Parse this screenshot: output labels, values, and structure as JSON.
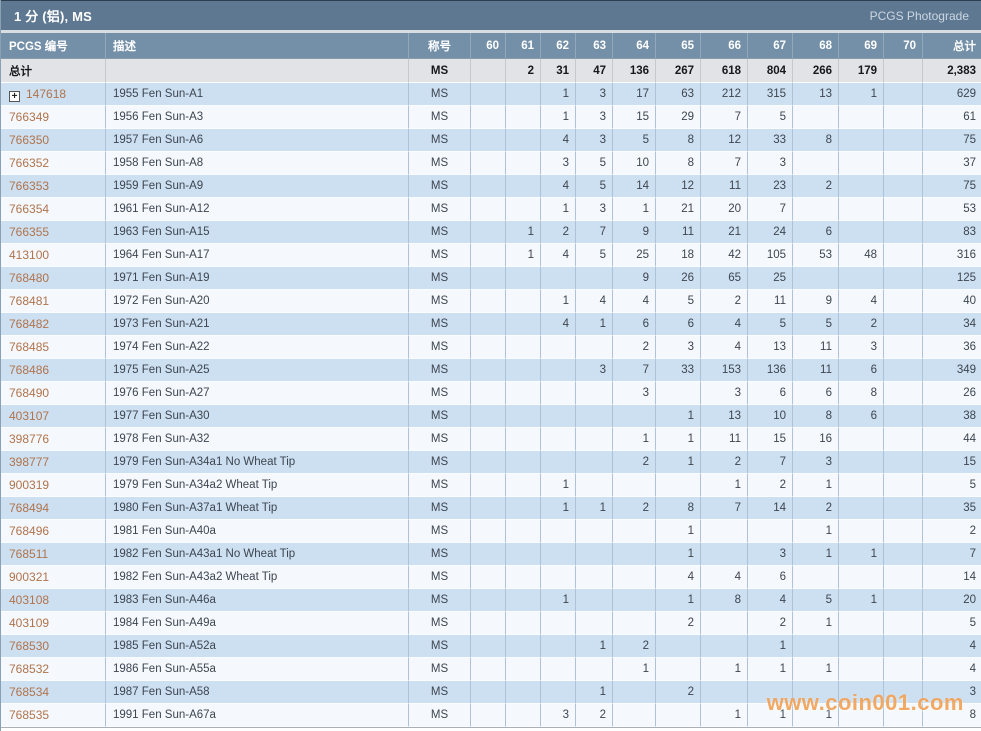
{
  "title_bar": {
    "title": "1 分 (铝), MS",
    "photograde_link": "PCGS Photograde"
  },
  "colors": {
    "title_bar_bg": "#5e7892",
    "header_bg": "#7490a8",
    "totals_row_bg": "#e1e3e6",
    "row_blue": "#cde0f2",
    "row_white": "#f5f9fd",
    "pcgs_link": "#b0734c",
    "watermark": "#f09d4e"
  },
  "table": {
    "columns": [
      "PCGS 编号",
      "描述",
      "称号",
      "60",
      "61",
      "62",
      "63",
      "64",
      "65",
      "66",
      "67",
      "68",
      "69",
      "70",
      "总计"
    ],
    "totals_row": {
      "label": "总计",
      "designation": "MS",
      "grades": [
        "",
        "2",
        "31",
        "47",
        "136",
        "267",
        "618",
        "804",
        "266",
        "179",
        ""
      ],
      "total": "2,383"
    },
    "rows": [
      {
        "pcgs": "147618",
        "expandable": true,
        "desc": "1955 Fen Sun-A1",
        "desig": "MS",
        "grades": [
          "",
          "",
          "1",
          "3",
          "17",
          "63",
          "212",
          "315",
          "13",
          "1",
          ""
        ],
        "total": "629"
      },
      {
        "pcgs": "766349",
        "expandable": false,
        "desc": "1956 Fen Sun-A3",
        "desig": "MS",
        "grades": [
          "",
          "",
          "1",
          "3",
          "15",
          "29",
          "7",
          "5",
          "",
          "",
          ""
        ],
        "total": "61"
      },
      {
        "pcgs": "766350",
        "expandable": false,
        "desc": "1957 Fen Sun-A6",
        "desig": "MS",
        "grades": [
          "",
          "",
          "4",
          "3",
          "5",
          "8",
          "12",
          "33",
          "8",
          "",
          ""
        ],
        "total": "75"
      },
      {
        "pcgs": "766352",
        "expandable": false,
        "desc": "1958 Fen Sun-A8",
        "desig": "MS",
        "grades": [
          "",
          "",
          "3",
          "5",
          "10",
          "8",
          "7",
          "3",
          "",
          "",
          ""
        ],
        "total": "37"
      },
      {
        "pcgs": "766353",
        "expandable": false,
        "desc": "1959 Fen Sun-A9",
        "desig": "MS",
        "grades": [
          "",
          "",
          "4",
          "5",
          "14",
          "12",
          "11",
          "23",
          "2",
          "",
          ""
        ],
        "total": "75"
      },
      {
        "pcgs": "766354",
        "expandable": false,
        "desc": "1961 Fen Sun-A12",
        "desig": "MS",
        "grades": [
          "",
          "",
          "1",
          "3",
          "1",
          "21",
          "20",
          "7",
          "",
          "",
          ""
        ],
        "total": "53"
      },
      {
        "pcgs": "766355",
        "expandable": false,
        "desc": "1963 Fen Sun-A15",
        "desig": "MS",
        "grades": [
          "",
          "1",
          "2",
          "7",
          "9",
          "11",
          "21",
          "24",
          "6",
          "",
          ""
        ],
        "total": "83"
      },
      {
        "pcgs": "413100",
        "expandable": false,
        "desc": "1964 Fen Sun-A17",
        "desig": "MS",
        "grades": [
          "",
          "1",
          "4",
          "5",
          "25",
          "18",
          "42",
          "105",
          "53",
          "48",
          ""
        ],
        "total": "316"
      },
      {
        "pcgs": "768480",
        "expandable": false,
        "desc": "1971 Fen Sun-A19",
        "desig": "MS",
        "grades": [
          "",
          "",
          "",
          "",
          "9",
          "26",
          "65",
          "25",
          "",
          "",
          ""
        ],
        "total": "125"
      },
      {
        "pcgs": "768481",
        "expandable": false,
        "desc": "1972 Fen Sun-A20",
        "desig": "MS",
        "grades": [
          "",
          "",
          "1",
          "4",
          "4",
          "5",
          "2",
          "11",
          "9",
          "4",
          ""
        ],
        "total": "40"
      },
      {
        "pcgs": "768482",
        "expandable": false,
        "desc": "1973 Fen Sun-A21",
        "desig": "MS",
        "grades": [
          "",
          "",
          "4",
          "1",
          "6",
          "6",
          "4",
          "5",
          "5",
          "2",
          ""
        ],
        "total": "34"
      },
      {
        "pcgs": "768485",
        "expandable": false,
        "desc": "1974 Fen Sun-A22",
        "desig": "MS",
        "grades": [
          "",
          "",
          "",
          "",
          "2",
          "3",
          "4",
          "13",
          "11",
          "3",
          ""
        ],
        "total": "36"
      },
      {
        "pcgs": "768486",
        "expandable": false,
        "desc": "1975 Fen Sun-A25",
        "desig": "MS",
        "grades": [
          "",
          "",
          "",
          "3",
          "7",
          "33",
          "153",
          "136",
          "11",
          "6",
          ""
        ],
        "total": "349"
      },
      {
        "pcgs": "768490",
        "expandable": false,
        "desc": "1976 Fen Sun-A27",
        "desig": "MS",
        "grades": [
          "",
          "",
          "",
          "",
          "3",
          "",
          "3",
          "6",
          "6",
          "8",
          ""
        ],
        "total": "26"
      },
      {
        "pcgs": "403107",
        "expandable": false,
        "desc": "1977 Fen Sun-A30",
        "desig": "MS",
        "grades": [
          "",
          "",
          "",
          "",
          "",
          "1",
          "13",
          "10",
          "8",
          "6",
          ""
        ],
        "total": "38"
      },
      {
        "pcgs": "398776",
        "expandable": false,
        "desc": "1978 Fen Sun-A32",
        "desig": "MS",
        "grades": [
          "",
          "",
          "",
          "",
          "1",
          "1",
          "11",
          "15",
          "16",
          "",
          ""
        ],
        "total": "44"
      },
      {
        "pcgs": "398777",
        "expandable": false,
        "desc": "1979 Fen Sun-A34a1 No Wheat Tip",
        "desig": "MS",
        "grades": [
          "",
          "",
          "",
          "",
          "2",
          "1",
          "2",
          "7",
          "3",
          "",
          ""
        ],
        "total": "15"
      },
      {
        "pcgs": "900319",
        "expandable": false,
        "desc": "1979 Fen Sun-A34a2 Wheat Tip",
        "desig": "MS",
        "grades": [
          "",
          "",
          "1",
          "",
          "",
          "",
          "1",
          "2",
          "1",
          "",
          ""
        ],
        "total": "5"
      },
      {
        "pcgs": "768494",
        "expandable": false,
        "desc": "1980 Fen Sun-A37a1 Wheat Tip",
        "desig": "MS",
        "grades": [
          "",
          "",
          "1",
          "1",
          "2",
          "8",
          "7",
          "14",
          "2",
          "",
          ""
        ],
        "total": "35"
      },
      {
        "pcgs": "768496",
        "expandable": false,
        "desc": "1981 Fen Sun-A40a",
        "desig": "MS",
        "grades": [
          "",
          "",
          "",
          "",
          "",
          "1",
          "",
          "",
          "1",
          "",
          ""
        ],
        "total": "2"
      },
      {
        "pcgs": "768511",
        "expandable": false,
        "desc": "1982 Fen Sun-A43a1 No Wheat Tip",
        "desig": "MS",
        "grades": [
          "",
          "",
          "",
          "",
          "",
          "1",
          "",
          "3",
          "1",
          "1",
          ""
        ],
        "total": "7"
      },
      {
        "pcgs": "900321",
        "expandable": false,
        "desc": "1982 Fen Sun-A43a2 Wheat Tip",
        "desig": "MS",
        "grades": [
          "",
          "",
          "",
          "",
          "",
          "4",
          "4",
          "6",
          "",
          "",
          ""
        ],
        "total": "14"
      },
      {
        "pcgs": "403108",
        "expandable": false,
        "desc": "1983 Fen Sun-A46a",
        "desig": "MS",
        "grades": [
          "",
          "",
          "1",
          "",
          "",
          "1",
          "8",
          "4",
          "5",
          "1",
          ""
        ],
        "total": "20"
      },
      {
        "pcgs": "403109",
        "expandable": false,
        "desc": "1984 Fen Sun-A49a",
        "desig": "MS",
        "grades": [
          "",
          "",
          "",
          "",
          "",
          "2",
          "",
          "2",
          "1",
          "",
          ""
        ],
        "total": "5"
      },
      {
        "pcgs": "768530",
        "expandable": false,
        "desc": "1985 Fen Sun-A52a",
        "desig": "MS",
        "grades": [
          "",
          "",
          "",
          "1",
          "2",
          "",
          "",
          "1",
          "",
          "",
          ""
        ],
        "total": "4"
      },
      {
        "pcgs": "768532",
        "expandable": false,
        "desc": "1986 Fen Sun-A55a",
        "desig": "MS",
        "grades": [
          "",
          "",
          "",
          "",
          "1",
          "",
          "1",
          "1",
          "1",
          "",
          ""
        ],
        "total": "4"
      },
      {
        "pcgs": "768534",
        "expandable": false,
        "desc": "1987 Fen Sun-A58",
        "desig": "MS",
        "grades": [
          "",
          "",
          "",
          "1",
          "",
          "2",
          "",
          "",
          "",
          "",
          ""
        ],
        "total": "3"
      },
      {
        "pcgs": "768535",
        "expandable": false,
        "desc": "1991 Fen Sun-A67a",
        "desig": "MS",
        "grades": [
          "",
          "",
          "3",
          "2",
          "",
          "",
          "1",
          "1",
          "1",
          "",
          ""
        ],
        "total": "8"
      }
    ]
  },
  "watermark": "www.coin001.com"
}
